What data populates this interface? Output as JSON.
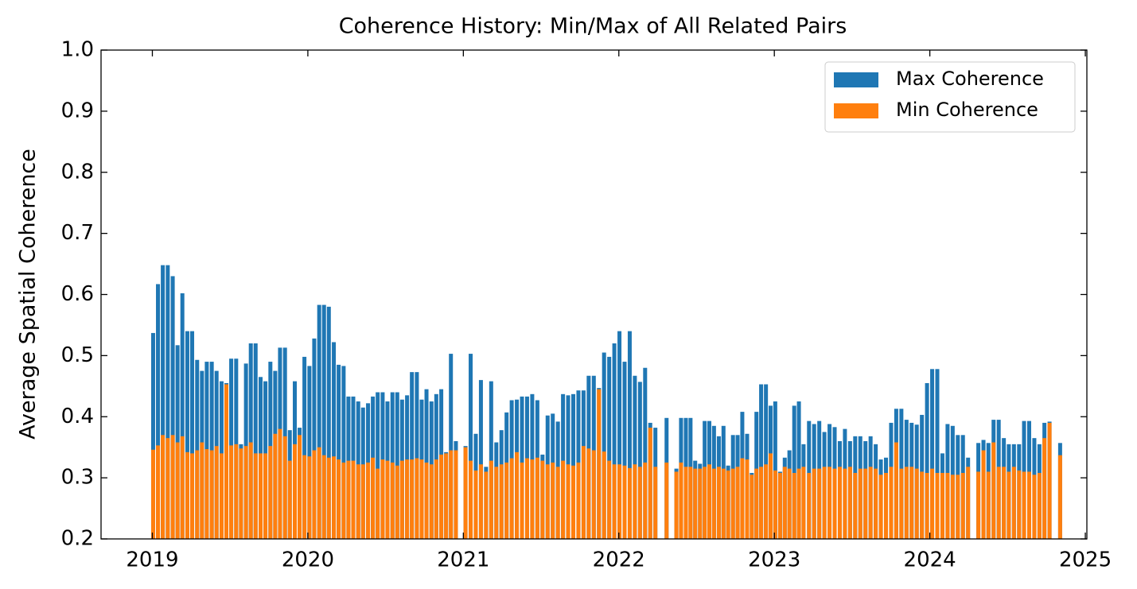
{
  "chart_data": {
    "type": "bar",
    "title": "Coherence History: Min/Max of All Related Pairs",
    "ylabel": "Average Spatial Coherence",
    "xlim": [
      2018.67,
      2025.01
    ],
    "xticks": [
      2019,
      2020,
      2021,
      2022,
      2023,
      2024,
      2025
    ],
    "ylim": [
      0.2,
      1
    ],
    "yticks": [
      0.2,
      0.3,
      0.4,
      0.5,
      0.6,
      0.7,
      0.8,
      0.9,
      {
        "value": 1,
        "label": "1.0"
      }
    ],
    "legend": "upper right",
    "x": [
      2019.005,
      2019.036,
      2019.067,
      2019.099,
      2019.131,
      2019.162,
      2019.193,
      2019.225,
      2019.256,
      2019.288,
      2019.319,
      2019.35,
      2019.382,
      2019.413,
      2019.445,
      2019.476,
      2019.507,
      2019.539,
      2019.57,
      2019.602,
      2019.633,
      2019.664,
      2019.696,
      2019.727,
      2019.759,
      2019.79,
      2019.821,
      2019.853,
      2019.884,
      2019.916,
      2019.947,
      2019.978,
      2020.01,
      2020.041,
      2020.073,
      2020.104,
      2020.135,
      2020.167,
      2020.198,
      2020.23,
      2020.261,
      2020.292,
      2020.324,
      2020.355,
      2020.387,
      2020.418,
      2020.449,
      2020.481,
      2020.512,
      2020.544,
      2020.575,
      2020.606,
      2020.638,
      2020.669,
      2020.701,
      2020.732,
      2020.763,
      2020.795,
      2020.826,
      2020.858,
      2020.889,
      2020.92,
      2020.952,
      2021.014,
      2021.047,
      2021.08,
      2021.113,
      2021.146,
      2021.179,
      2021.212,
      2021.245,
      2021.278,
      2021.311,
      2021.344,
      2021.377,
      2021.41,
      2021.443,
      2021.476,
      2021.509,
      2021.542,
      2021.575,
      2021.608,
      2021.641,
      2021.674,
      2021.707,
      2021.74,
      2021.773,
      2021.806,
      2021.839,
      2021.872,
      2021.905,
      2021.938,
      2021.971,
      2022.004,
      2022.037,
      2022.07,
      2022.103,
      2022.136,
      2022.169,
      2022.202,
      2022.235,
      2022.307,
      2022.37,
      2022.4,
      2022.431,
      2022.461,
      2022.491,
      2022.522,
      2022.552,
      2022.582,
      2022.612,
      2022.643,
      2022.673,
      2022.703,
      2022.734,
      2022.764,
      2022.794,
      2022.825,
      2022.855,
      2022.885,
      2022.915,
      2022.946,
      2022.976,
      2023.006,
      2023.037,
      2023.067,
      2023.097,
      2023.128,
      2023.158,
      2023.188,
      2023.223,
      2023.256,
      2023.289,
      2023.322,
      2023.355,
      2023.388,
      2023.421,
      2023.454,
      2023.487,
      2023.52,
      2023.553,
      2023.586,
      2023.619,
      2023.652,
      2023.685,
      2023.718,
      2023.751,
      2023.784,
      2023.817,
      2023.85,
      2023.883,
      2023.916,
      2023.949,
      2023.982,
      2024.015,
      2024.048,
      2024.081,
      2024.114,
      2024.147,
      2024.18,
      2024.213,
      2024.246,
      2024.312,
      2024.345,
      2024.377,
      2024.41,
      2024.443,
      2024.476,
      2024.508,
      2024.541,
      2024.574,
      2024.606,
      2024.639,
      2024.672,
      2024.705,
      2024.737,
      2024.77,
      2024.838
    ],
    "series": [
      {
        "name": "Max Coherence",
        "color": "#1f77b4",
        "values": [
          0.537,
          0.617,
          0.648,
          0.648,
          0.63,
          0.517,
          0.602,
          0.54,
          0.54,
          0.493,
          0.475,
          0.49,
          0.49,
          0.475,
          0.458,
          0.455,
          0.495,
          0.495,
          0.355,
          0.487,
          0.52,
          0.52,
          0.465,
          0.458,
          0.49,
          0.475,
          0.513,
          0.513,
          0.378,
          0.458,
          0.382,
          0.498,
          0.483,
          0.528,
          0.583,
          0.583,
          0.58,
          0.522,
          0.485,
          0.483,
          0.433,
          0.433,
          0.425,
          0.415,
          0.422,
          0.433,
          0.44,
          0.44,
          0.425,
          0.44,
          0.44,
          0.428,
          0.435,
          0.473,
          0.473,
          0.428,
          0.445,
          0.425,
          0.437,
          0.445,
          0.342,
          0.503,
          0.36,
          0.352,
          0.503,
          0.372,
          0.46,
          0.318,
          0.458,
          0.358,
          0.378,
          0.407,
          0.427,
          0.428,
          0.433,
          0.433,
          0.437,
          0.427,
          0.338,
          0.402,
          0.405,
          0.392,
          0.437,
          0.435,
          0.437,
          0.443,
          0.443,
          0.467,
          0.467,
          0.447,
          0.505,
          0.498,
          0.52,
          0.54,
          0.49,
          0.54,
          0.467,
          0.457,
          0.48,
          0.39,
          0.382,
          0.398,
          0.315,
          0.398,
          0.398,
          0.398,
          0.328,
          0.323,
          0.393,
          0.393,
          0.385,
          0.368,
          0.385,
          0.32,
          0.37,
          0.37,
          0.408,
          0.372,
          0.308,
          0.408,
          0.453,
          0.453,
          0.418,
          0.425,
          0.31,
          0.333,
          0.345,
          0.418,
          0.425,
          0.355,
          0.393,
          0.388,
          0.393,
          0.375,
          0.388,
          0.383,
          0.36,
          0.38,
          0.36,
          0.368,
          0.368,
          0.36,
          0.368,
          0.355,
          0.33,
          0.333,
          0.39,
          0.413,
          0.413,
          0.395,
          0.39,
          0.387,
          0.403,
          0.455,
          0.478,
          0.478,
          0.34,
          0.388,
          0.385,
          0.37,
          0.37,
          0.333,
          0.357,
          0.362,
          0.357,
          0.395,
          0.395,
          0.365,
          0.355,
          0.355,
          0.355,
          0.393,
          0.393,
          0.365,
          0.355,
          0.39,
          0.392,
          0.357
        ]
      },
      {
        "name": "Min Coherence",
        "color": "#ff7f0e",
        "values": [
          0.346,
          0.353,
          0.37,
          0.365,
          0.37,
          0.358,
          0.368,
          0.342,
          0.34,
          0.345,
          0.358,
          0.347,
          0.345,
          0.352,
          0.34,
          0.453,
          0.353,
          0.355,
          0.348,
          0.352,
          0.358,
          0.34,
          0.34,
          0.34,
          0.352,
          0.372,
          0.38,
          0.368,
          0.328,
          0.355,
          0.37,
          0.337,
          0.335,
          0.345,
          0.35,
          0.337,
          0.333,
          0.335,
          0.33,
          0.325,
          0.328,
          0.328,
          0.322,
          0.322,
          0.325,
          0.333,
          0.315,
          0.33,
          0.328,
          0.325,
          0.32,
          0.328,
          0.33,
          0.33,
          0.332,
          0.33,
          0.325,
          0.322,
          0.33,
          0.338,
          0.34,
          0.345,
          0.345,
          0.35,
          0.328,
          0.312,
          0.322,
          0.31,
          0.328,
          0.318,
          0.322,
          0.325,
          0.332,
          0.342,
          0.325,
          0.332,
          0.33,
          0.333,
          0.328,
          0.322,
          0.325,
          0.318,
          0.328,
          0.322,
          0.32,
          0.325,
          0.352,
          0.348,
          0.345,
          0.445,
          0.343,
          0.328,
          0.322,
          0.322,
          0.32,
          0.316,
          0.322,
          0.318,
          0.325,
          0.382,
          0.318,
          0.325,
          0.31,
          0.325,
          0.318,
          0.318,
          0.315,
          0.315,
          0.318,
          0.322,
          0.315,
          0.318,
          0.315,
          0.312,
          0.315,
          0.318,
          0.332,
          0.33,
          0.305,
          0.315,
          0.318,
          0.322,
          0.34,
          0.312,
          0.308,
          0.318,
          0.315,
          0.308,
          0.315,
          0.318,
          0.308,
          0.315,
          0.315,
          0.318,
          0.318,
          0.315,
          0.318,
          0.315,
          0.318,
          0.308,
          0.315,
          0.315,
          0.318,
          0.315,
          0.305,
          0.308,
          0.318,
          0.358,
          0.315,
          0.318,
          0.318,
          0.315,
          0.31,
          0.308,
          0.315,
          0.308,
          0.308,
          0.308,
          0.305,
          0.305,
          0.308,
          0.318,
          0.31,
          0.345,
          0.31,
          0.358,
          0.318,
          0.318,
          0.31,
          0.318,
          0.312,
          0.31,
          0.31,
          0.305,
          0.308,
          0.365,
          0.39,
          0.337
        ]
      }
    ]
  }
}
